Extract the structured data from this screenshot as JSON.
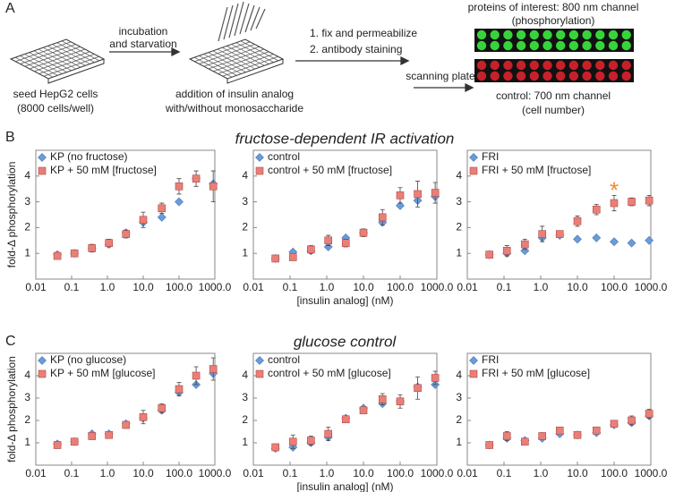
{
  "panel_a": {
    "label": "A",
    "seed": [
      "seed HepG2 cells",
      "(8000 cells/well)"
    ],
    "step1": [
      "incubation",
      "and starvation"
    ],
    "addition": [
      "addition of insulin analog",
      "with/without monosaccharide"
    ],
    "step2": [
      "1. fix and permeabilize",
      "2. antibody staining"
    ],
    "scan": "scanning plate",
    "green": [
      "proteins of interest: 800 nm channel",
      "(phosphorylation)"
    ],
    "red": [
      "control: 700 nm channel",
      "(cell number)"
    ]
  },
  "rows": [
    {
      "label": "B",
      "title": "fructose-dependent IR activation"
    },
    {
      "label": "C",
      "title": "glucose control"
    }
  ],
  "chart_data": [
    {
      "type": "scatter",
      "row": 0,
      "ylabel": "fold-Δ phosphorylation",
      "xscale": "log",
      "legend": "upper left",
      "x": [
        0.04,
        0.12,
        0.37,
        1.1,
        3.3,
        10,
        33,
        100,
        300,
        900
      ],
      "xlim": [
        0.01,
        1000
      ],
      "xticks": [
        0.01,
        0.1,
        {
          "value": 1,
          "label": "1.0"
        },
        {
          "value": 10,
          "label": "10.0"
        },
        {
          "value": 100,
          "label": "100.0"
        },
        {
          "value": 1000,
          "label": "1000.0"
        }
      ],
      "ylim": [
        0,
        5
      ],
      "yticks": [
        1,
        2,
        3,
        4
      ],
      "series": [
        {
          "name": "KP (no fructose)",
          "color": "#6b9bd8",
          "marker": "diamond",
          "values": [
            0.95,
            1.0,
            1.2,
            1.35,
            1.8,
            2.2,
            2.4,
            3.0,
            3.9,
            3.7
          ]
        },
        {
          "name": "KP + 50 mM [fructose]",
          "color": "#ea7f78",
          "marker": "square",
          "values": [
            0.9,
            1.0,
            1.2,
            1.4,
            1.75,
            2.3,
            2.75,
            3.6,
            3.9,
            3.6
          ],
          "errors": [
            0.1,
            0.1,
            0.15,
            0.15,
            0.15,
            0.3,
            0.2,
            0.3,
            0.3,
            0.6
          ]
        }
      ]
    },
    {
      "type": "scatter",
      "row": 0,
      "xlabel": "[insulin analog] (nM)",
      "xscale": "log",
      "legend": "upper left",
      "x": [
        0.04,
        0.12,
        0.37,
        1.1,
        3.3,
        10,
        33,
        100,
        300,
        900
      ],
      "xlim": [
        0.01,
        1000
      ],
      "xticks": [
        0.01,
        0.1,
        {
          "value": 1,
          "label": "1.0"
        },
        {
          "value": 10,
          "label": "10.0"
        },
        {
          "value": 100,
          "label": "100.0"
        },
        {
          "value": 1000,
          "label": "1000.0"
        }
      ],
      "ylim": [
        0,
        5
      ],
      "yticks": [
        1,
        2,
        3,
        4
      ],
      "series": [
        {
          "name": "control",
          "color": "#6b9bd8",
          "marker": "diamond",
          "values": [
            0.8,
            1.05,
            1.1,
            1.25,
            1.6,
            1.8,
            2.2,
            2.85,
            3.05,
            3.2
          ]
        },
        {
          "name": "control + 50 mM [fructose]",
          "color": "#ea7f78",
          "marker": "square",
          "values": [
            0.8,
            0.85,
            1.15,
            1.5,
            1.4,
            1.8,
            2.4,
            3.25,
            3.3,
            3.35
          ],
          "errors": [
            0.1,
            0.1,
            0.15,
            0.2,
            0.15,
            0.15,
            0.3,
            0.3,
            0.5,
            0.4
          ]
        }
      ]
    },
    {
      "type": "scatter",
      "row": 0,
      "xscale": "log",
      "legend": "upper left",
      "x": [
        0.04,
        0.12,
        0.37,
        1.1,
        3.3,
        10,
        33,
        100,
        300,
        900
      ],
      "xlim": [
        0.01,
        1000
      ],
      "xticks": [
        0.01,
        0.1,
        {
          "value": 1,
          "label": "1.0"
        },
        {
          "value": 10,
          "label": "10.0"
        },
        {
          "value": 100,
          "label": "100.0"
        },
        {
          "value": 1000,
          "label": "1000.0"
        }
      ],
      "ylim": [
        0,
        5
      ],
      "yticks": [
        1,
        2,
        3,
        4
      ],
      "annotations": [
        {
          "text": "*",
          "x": 100,
          "y": 3.55,
          "color": "#f28a2e"
        }
      ],
      "series": [
        {
          "name": "FRI",
          "color": "#6b9bd8",
          "marker": "diamond",
          "values": [
            0.95,
            1.0,
            1.1,
            1.6,
            1.7,
            1.55,
            1.6,
            1.45,
            1.4,
            1.5
          ]
        },
        {
          "name": "FRI + 50 mM [fructose]",
          "color": "#ea7f78",
          "marker": "square",
          "values": [
            0.95,
            1.1,
            1.35,
            1.75,
            1.75,
            2.25,
            2.7,
            2.95,
            3.0,
            3.05
          ],
          "errors": [
            0.1,
            0.2,
            0.2,
            0.3,
            0.1,
            0.2,
            0.2,
            0.3,
            0.15,
            0.2
          ]
        }
      ]
    },
    {
      "type": "scatter",
      "row": 1,
      "ylabel": "fold-Δ phosphorylation",
      "xscale": "log",
      "legend": "upper left",
      "x": [
        0.04,
        0.12,
        0.37,
        1.1,
        3.3,
        10,
        33,
        100,
        300,
        900
      ],
      "xlim": [
        0.01,
        1000
      ],
      "xticks": [
        0.01,
        0.1,
        {
          "value": 1,
          "label": "1.0"
        },
        {
          "value": 10,
          "label": "10.0"
        },
        {
          "value": 100,
          "label": "100.0"
        },
        {
          "value": 1000,
          "label": "1000.0"
        }
      ],
      "ylim": [
        0,
        5
      ],
      "yticks": [
        1,
        2,
        3,
        4
      ],
      "series": [
        {
          "name": "KP (no glucose)",
          "color": "#6b9bd8",
          "marker": "diamond",
          "values": [
            0.95,
            1.05,
            1.4,
            1.4,
            1.85,
            2.1,
            2.45,
            3.25,
            3.6,
            4.1
          ]
        },
        {
          "name": "KP + 50 mM [glucose]",
          "color": "#ea7f78",
          "marker": "square",
          "values": [
            0.9,
            1.05,
            1.3,
            1.35,
            1.8,
            2.15,
            2.55,
            3.4,
            4.0,
            4.3
          ],
          "errors": [
            0.15,
            0.1,
            0.15,
            0.15,
            0.15,
            0.3,
            0.2,
            0.3,
            0.4,
            0.5
          ]
        }
      ]
    },
    {
      "type": "scatter",
      "row": 1,
      "xlabel": "[insulin analog] (nM)",
      "xscale": "log",
      "legend": "upper left",
      "x": [
        0.04,
        0.12,
        0.37,
        1.1,
        3.3,
        10,
        33,
        100,
        300,
        900
      ],
      "xlim": [
        0.01,
        1000
      ],
      "xticks": [
        0.01,
        0.1,
        {
          "value": 1,
          "label": "1.0"
        },
        {
          "value": 10,
          "label": "10.0"
        },
        {
          "value": 100,
          "label": "100.0"
        },
        {
          "value": 1000,
          "label": "1000.0"
        }
      ],
      "ylim": [
        0,
        5
      ],
      "yticks": [
        1,
        2,
        3,
        4
      ],
      "series": [
        {
          "name": "control",
          "color": "#6b9bd8",
          "marker": "diamond",
          "values": [
            0.75,
            0.8,
            1.0,
            1.25,
            2.1,
            2.55,
            2.75,
            2.85,
            3.5,
            3.6
          ]
        },
        {
          "name": "control + 50 mM [glucose]",
          "color": "#ea7f78",
          "marker": "square",
          "values": [
            0.8,
            1.05,
            1.1,
            1.4,
            2.05,
            2.45,
            2.95,
            2.85,
            3.45,
            3.9
          ],
          "errors": [
            0.15,
            0.3,
            0.2,
            0.3,
            0.1,
            0.15,
            0.25,
            0.3,
            0.5,
            0.3
          ]
        }
      ]
    },
    {
      "type": "scatter",
      "row": 1,
      "xscale": "log",
      "legend": "upper left",
      "x": [
        0.04,
        0.12,
        0.37,
        1.1,
        3.3,
        10,
        33,
        100,
        300,
        900
      ],
      "xlim": [
        0.01,
        1000
      ],
      "xticks": [
        0.01,
        0.1,
        {
          "value": 1,
          "label": "1.0"
        },
        {
          "value": 10,
          "label": "10.0"
        },
        {
          "value": 100,
          "label": "100.0"
        },
        {
          "value": 1000,
          "label": "1000.0"
        }
      ],
      "ylim": [
        0,
        5
      ],
      "yticks": [
        1,
        2,
        3,
        4
      ],
      "series": [
        {
          "name": "FRI",
          "color": "#6b9bd8",
          "marker": "diamond",
          "values": [
            0.9,
            1.2,
            1.1,
            1.2,
            1.4,
            1.35,
            1.45,
            1.8,
            1.9,
            2.2
          ]
        },
        {
          "name": "FRI + 50 mM [glucose]",
          "color": "#ea7f78",
          "marker": "square",
          "values": [
            0.9,
            1.3,
            1.05,
            1.3,
            1.55,
            1.35,
            1.55,
            1.85,
            2.0,
            2.3
          ],
          "errors": [
            0.1,
            0.2,
            0.15,
            0.15,
            0.15,
            0.1,
            0.15,
            0.15,
            0.2,
            0.2
          ]
        }
      ]
    }
  ]
}
